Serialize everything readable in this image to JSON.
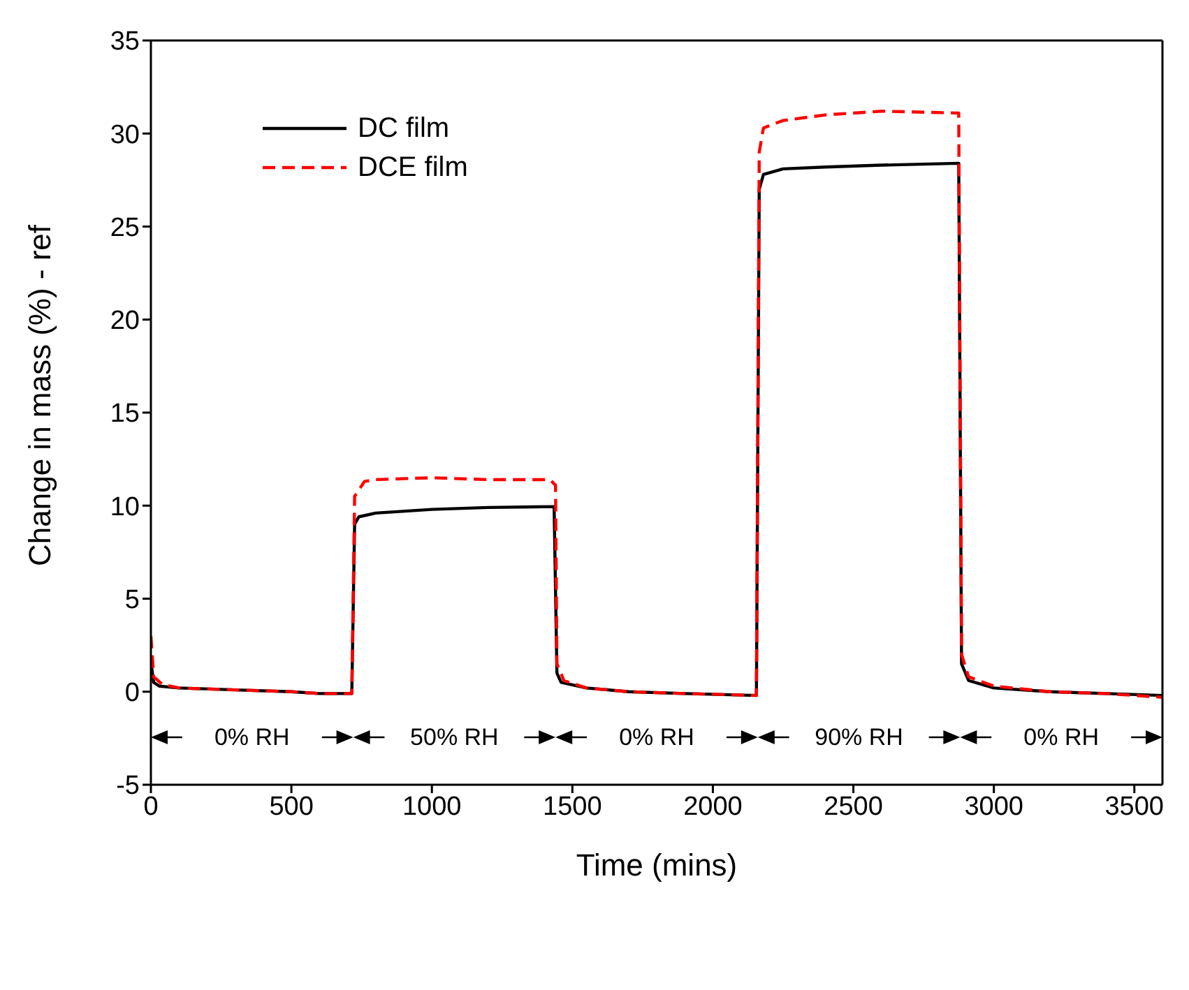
{
  "chart_data": {
    "type": "line",
    "xlabel": "Time (mins)",
    "ylabel": "Change in mass (%) - ref",
    "xlim": [
      0,
      3600
    ],
    "xticks": [
      0,
      500,
      1000,
      1500,
      2000,
      2500,
      3000,
      3500
    ],
    "ylim": [
      -5,
      35
    ],
    "yticks": [
      -5,
      0,
      5,
      10,
      15,
      20,
      25,
      30,
      35
    ],
    "legend": "top left",
    "series": [
      {
        "name": "DC film",
        "color": "#000000",
        "line_style": "solid",
        "x": [
          0,
          10,
          30,
          100,
          300,
          500,
          600,
          715,
          725,
          740,
          800,
          1000,
          1200,
          1435,
          1445,
          1460,
          1550,
          1700,
          1900,
          2155,
          2165,
          2180,
          2250,
          2400,
          2600,
          2875,
          2885,
          2910,
          3000,
          3200,
          3400,
          3600
        ],
        "values": [
          1.6,
          0.5,
          0.3,
          0.2,
          0.1,
          0.0,
          -0.1,
          -0.1,
          9.0,
          9.4,
          9.6,
          9.8,
          9.9,
          9.95,
          1.0,
          0.5,
          0.2,
          0.0,
          -0.1,
          -0.2,
          27.0,
          27.8,
          28.1,
          28.2,
          28.3,
          28.4,
          1.5,
          0.6,
          0.2,
          0.0,
          -0.1,
          -0.2
        ]
      },
      {
        "name": "DCE film",
        "color": "#ff0000",
        "line_style": "dashed",
        "x": [
          0,
          10,
          40,
          100,
          300,
          500,
          600,
          715,
          725,
          760,
          800,
          1000,
          1200,
          1420,
          1440,
          1445,
          1470,
          1550,
          1700,
          1900,
          2155,
          2165,
          2180,
          2250,
          2400,
          2600,
          2875,
          2885,
          2910,
          3000,
          3200,
          3400,
          3600
        ],
        "values": [
          3.0,
          0.8,
          0.4,
          0.2,
          0.1,
          0.0,
          -0.1,
          -0.1,
          10.5,
          11.3,
          11.4,
          11.5,
          11.4,
          11.4,
          11.1,
          1.5,
          0.6,
          0.2,
          0.0,
          -0.1,
          -0.2,
          29.0,
          30.3,
          30.7,
          31.0,
          31.2,
          31.1,
          2.0,
          0.8,
          0.3,
          0.0,
          -0.1,
          -0.3
        ]
      }
    ],
    "annotations": [
      "0% RH",
      "50% RH",
      "0% RH",
      "90% RH",
      "0% RH"
    ]
  }
}
